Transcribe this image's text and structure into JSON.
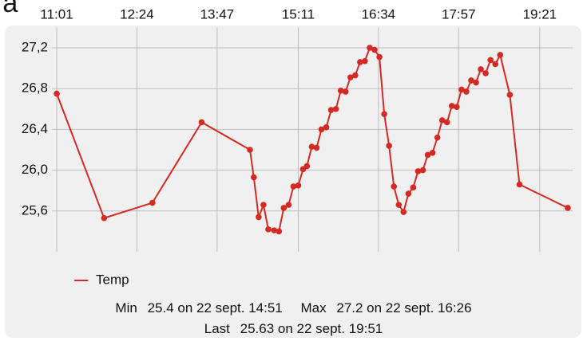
{
  "chart_data": {
    "type": "line",
    "title": "ra",
    "x": [
      661,
      710,
      760,
      811,
      861,
      865,
      870,
      875,
      880,
      886,
      891,
      896,
      901,
      906,
      911,
      916,
      920,
      925,
      930,
      935,
      940,
      945,
      950,
      955,
      960,
      965,
      970,
      975,
      980,
      985,
      990,
      995,
      1000,
      1005,
      1010,
      1015,
      1020,
      1025,
      1030,
      1035,
      1040,
      1045,
      1050,
      1055,
      1060,
      1065,
      1070,
      1075,
      1080,
      1085,
      1090,
      1095,
      1100,
      1105,
      1110,
      1115,
      1120,
      1130,
      1140,
      1190
    ],
    "series": [
      {
        "name": "Temp",
        "color": "#d42a24",
        "values": [
          26.75,
          25.53,
          25.68,
          26.47,
          26.2,
          25.93,
          25.54,
          25.66,
          25.42,
          25.41,
          25.4,
          25.63,
          25.66,
          25.84,
          25.85,
          26.01,
          26.04,
          26.23,
          26.22,
          26.4,
          26.42,
          26.59,
          26.6,
          26.78,
          26.77,
          26.91,
          26.93,
          27.06,
          27.07,
          27.2,
          27.18,
          27.11,
          26.55,
          26.24,
          25.84,
          25.66,
          25.59,
          25.77,
          25.83,
          25.99,
          26.0,
          26.15,
          26.17,
          26.32,
          26.49,
          26.47,
          26.63,
          26.62,
          26.79,
          26.77,
          26.88,
          26.86,
          26.99,
          26.95,
          27.08,
          27.04,
          27.13,
          26.74,
          25.86,
          25.63
        ]
      }
    ],
    "xlim": [
      656,
      1195
    ],
    "xticks": [
      {
        "value": 661,
        "label": "11:01"
      },
      {
        "value": 744,
        "label": "12:24"
      },
      {
        "value": 827,
        "label": "13:47"
      },
      {
        "value": 911,
        "label": "15:11"
      },
      {
        "value": 994,
        "label": "16:34"
      },
      {
        "value": 1077,
        "label": "17:57"
      },
      {
        "value": 1161,
        "label": "19:21"
      }
    ],
    "ylim": [
      25.2,
      27.4
    ],
    "yticks": [
      {
        "value": 25.6,
        "label": "25,6"
      },
      {
        "value": 26.0,
        "label": "26,0"
      },
      {
        "value": 26.4,
        "label": "26,4"
      },
      {
        "value": 26.8,
        "label": "26,8"
      },
      {
        "value": 27.2,
        "label": "27,2"
      }
    ],
    "grid": true,
    "stats": {
      "min_label": "Min",
      "min": "25.4 on 22 sept. 14:51",
      "max_label": "Max",
      "max": "27.2 on 22 sept. 16:26",
      "last_label": "Last",
      "last": "25.63 on 22 sept. 19:51"
    }
  }
}
